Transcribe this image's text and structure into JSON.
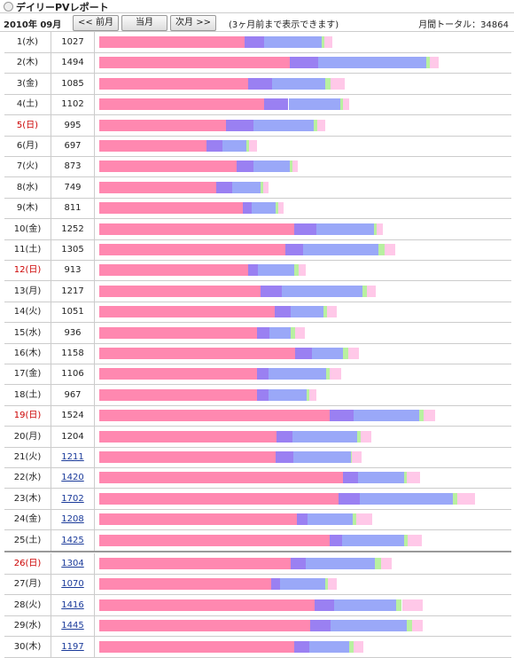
{
  "header": {
    "title": "デイリーPVレポート",
    "month": "2010年 09月",
    "buttons": [
      "<< 前月",
      "当月",
      "次月 >>"
    ],
    "note": "(3ヶ月前まで表示できます)",
    "total": "月間トータル：34864"
  },
  "segment_colors": [
    "#ff88b0",
    "#9a80f2",
    "#9aa8f8",
    "#b8f0a0",
    "#ffc8e8"
  ],
  "rows": [
    {
      "date": "1(水)",
      "count": 1027,
      "sunday": false,
      "link": false,
      "segments": [
        640,
        86,
        254,
        12,
        35
      ]
    },
    {
      "date": "2(木)",
      "count": 1494,
      "sunday": false,
      "link": false,
      "segments": [
        839,
        125,
        476,
        16,
        39
      ]
    },
    {
      "date": "3(金)",
      "count": 1085,
      "sunday": false,
      "link": false,
      "segments": [
        655,
        105,
        238,
        23,
        62
      ]
    },
    {
      "date": "4(土)",
      "count": 1102,
      "sunday": false,
      "link": false,
      "segments": [
        725,
        109,
        230,
        12,
        27
      ]
    },
    {
      "date": "5(日)",
      "count": 995,
      "sunday": true,
      "link": false,
      "segments": [
        558,
        121,
        265,
        16,
        35
      ]
    },
    {
      "date": "6(月)",
      "count": 697,
      "sunday": false,
      "link": false,
      "segments": [
        472,
        70,
        105,
        12,
        35
      ]
    },
    {
      "date": "7(火)",
      "count": 873,
      "sunday": false,
      "link": false,
      "segments": [
        605,
        74,
        160,
        12,
        23
      ]
    },
    {
      "date": "8(水)",
      "count": 749,
      "sunday": false,
      "link": false,
      "segments": [
        515,
        70,
        125,
        12,
        23
      ]
    },
    {
      "date": "9(木)",
      "count": 811,
      "sunday": false,
      "link": false,
      "segments": [
        632,
        39,
        105,
        12,
        23
      ]
    },
    {
      "date": "10(金)",
      "count": 1252,
      "sunday": false,
      "link": false,
      "segments": [
        858,
        98,
        254,
        12,
        27
      ]
    },
    {
      "date": "11(土)",
      "count": 1305,
      "sunday": false,
      "link": false,
      "segments": [
        819,
        78,
        332,
        27,
        47
      ]
    },
    {
      "date": "12(日)",
      "count": 913,
      "sunday": true,
      "link": false,
      "segments": [
        655,
        43,
        160,
        20,
        31
      ]
    },
    {
      "date": "13(月)",
      "count": 1217,
      "sunday": false,
      "link": false,
      "segments": [
        710,
        94,
        355,
        20,
        39
      ]
    },
    {
      "date": "14(火)",
      "count": 1051,
      "sunday": false,
      "link": false,
      "segments": [
        772,
        70,
        148,
        12,
        43
      ]
    },
    {
      "date": "15(水)",
      "count": 936,
      "sunday": false,
      "link": false,
      "segments": [
        694,
        55,
        94,
        20,
        43
      ]
    },
    {
      "date": "16(木)",
      "count": 1158,
      "sunday": false,
      "link": false,
      "segments": [
        862,
        74,
        140,
        20,
        47
      ]
    },
    {
      "date": "17(金)",
      "count": 1106,
      "sunday": false,
      "link": false,
      "segments": [
        694,
        51,
        254,
        16,
        51
      ]
    },
    {
      "date": "18(土)",
      "count": 967,
      "sunday": false,
      "link": false,
      "segments": [
        694,
        51,
        168,
        12,
        31
      ]
    },
    {
      "date": "19(日)",
      "count": 1524,
      "sunday": true,
      "link": false,
      "segments": [
        1014,
        109,
        289,
        16,
        51
      ]
    },
    {
      "date": "20(月)",
      "count": 1204,
      "sunday": false,
      "link": false,
      "segments": [
        780,
        70,
        285,
        16,
        47
      ]
    },
    {
      "date": "21(火)",
      "count": 1211,
      "sunday": false,
      "link": true,
      "segments": [
        776,
        78,
        257,
        4,
        43
      ]
    },
    {
      "date": "22(水)",
      "count": 1420,
      "sunday": false,
      "link": true,
      "segments": [
        1073,
        66,
        203,
        12,
        59
      ]
    },
    {
      "date": "23(木)",
      "count": 1702,
      "sunday": false,
      "link": true,
      "segments": [
        1053,
        94,
        410,
        20,
        78
      ]
    },
    {
      "date": "24(金)",
      "count": 1208,
      "sunday": false,
      "link": true,
      "segments": [
        870,
        47,
        199,
        16,
        70
      ]
    },
    {
      "date": "25(土)",
      "count": 1425,
      "sunday": false,
      "link": true,
      "segments": [
        1014,
        55,
        273,
        16,
        62
      ]
    },
    {
      "date": "26(日)",
      "count": 1304,
      "sunday": true,
      "link": true,
      "segments": [
        842,
        70,
        304,
        27,
        47
      ]
    },
    {
      "date": "27(月)",
      "count": 1070,
      "sunday": false,
      "link": true,
      "segments": [
        757,
        39,
        199,
        12,
        39
      ]
    },
    {
      "date": "28(火)",
      "count": 1416,
      "sunday": false,
      "link": true,
      "segments": [
        948,
        86,
        273,
        27,
        90
      ]
    },
    {
      "date": "29(水)",
      "count": 1445,
      "sunday": false,
      "link": true,
      "segments": [
        928,
        90,
        339,
        20,
        47
      ]
    },
    {
      "date": "30(木)",
      "count": 1197,
      "sunday": false,
      "link": true,
      "segments": [
        858,
        66,
        176,
        20,
        43
      ]
    }
  ]
}
